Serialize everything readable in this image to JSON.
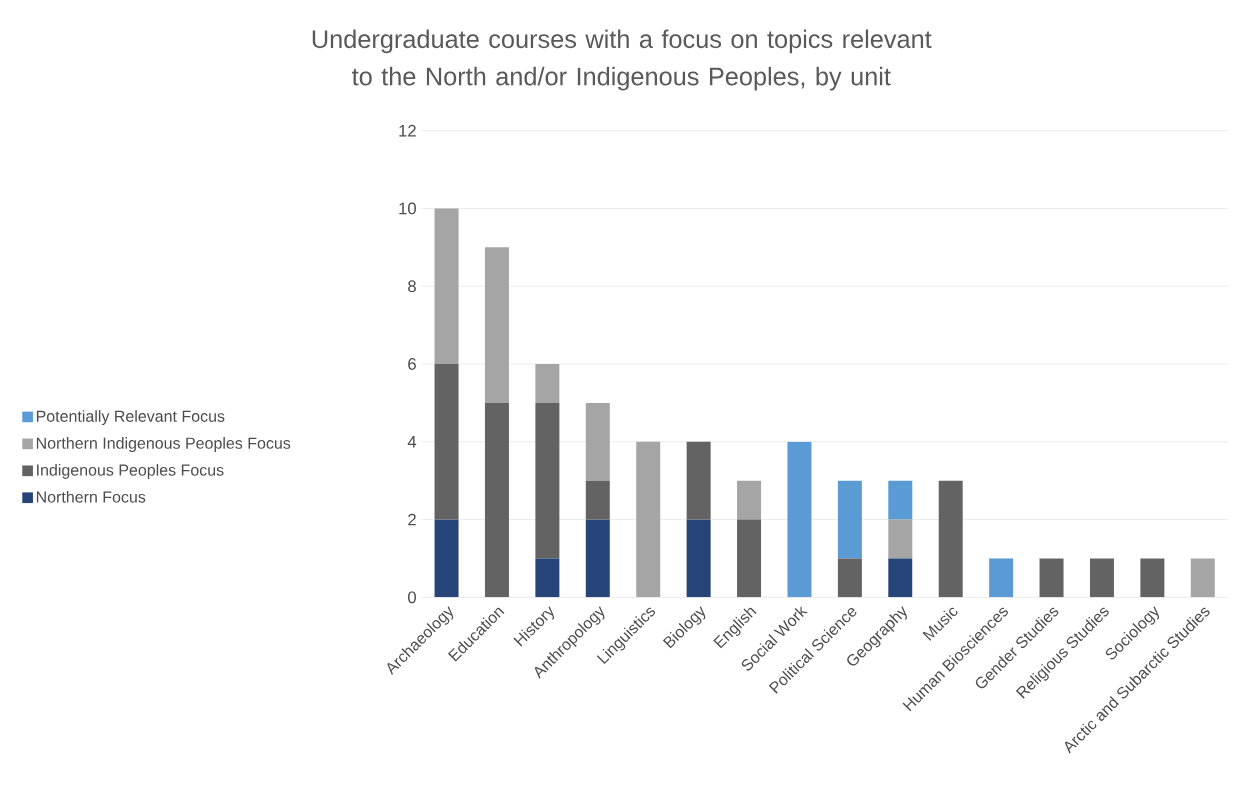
{
  "chart_data": {
    "type": "bar",
    "stacked": true,
    "title": "Undergraduate courses with a focus on topics relevant to the North and/or Indigenous Peoples, by unit",
    "categories": [
      "Archaeology",
      "Education",
      "History",
      "Anthropology",
      "Linguistics",
      "Biology",
      "English",
      "Social Work",
      "Political Science",
      "Geography",
      "Music",
      "Human Biosciences",
      "Gender Studies",
      "Religious Studies",
      "Sociology",
      "Arctic and Subarctic Studies"
    ],
    "series": [
      {
        "name": "Northern Focus",
        "color": "#264478",
        "values": [
          2,
          0,
          1,
          2,
          0,
          2,
          0,
          0,
          0,
          1,
          0,
          0,
          0,
          0,
          0,
          0
        ]
      },
      {
        "name": "Indigenous Peoples Focus",
        "color": "#636363",
        "values": [
          4,
          5,
          4,
          1,
          0,
          2,
          2,
          0,
          1,
          0,
          3,
          0,
          1,
          1,
          1,
          0
        ]
      },
      {
        "name": "Northern Indigenous Peoples Focus",
        "color": "#a5a5a5",
        "values": [
          4,
          4,
          1,
          2,
          4,
          0,
          1,
          0,
          0,
          1,
          0,
          0,
          0,
          0,
          0,
          1
        ]
      },
      {
        "name": "Potentially Relevant Focus",
        "color": "#5b9bd5",
        "values": [
          0,
          0,
          0,
          0,
          0,
          0,
          0,
          4,
          2,
          1,
          0,
          1,
          0,
          0,
          0,
          0
        ]
      }
    ],
    "ylim": [
      0,
      12
    ],
    "yticks": [
      0,
      2,
      4,
      6,
      8,
      10,
      12
    ],
    "grid": "y",
    "legend": "left"
  }
}
